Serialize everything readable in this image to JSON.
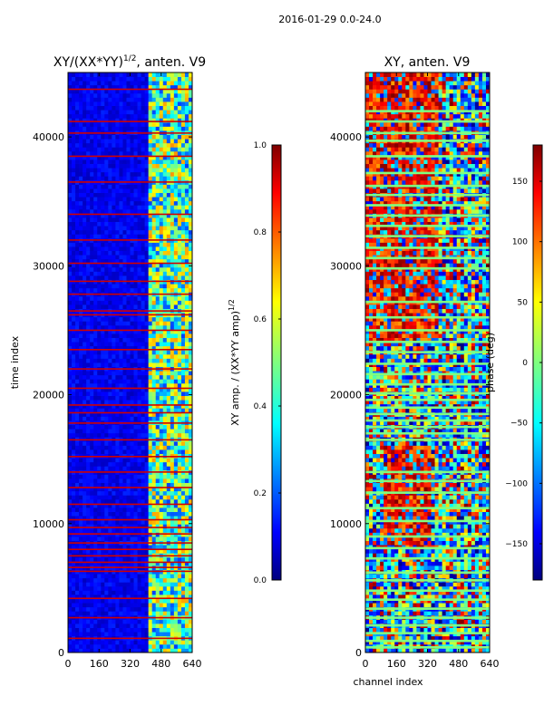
{
  "suptitle": "2016-01-29 0.0-24.0",
  "chart_data": [
    {
      "type": "heatmap",
      "title_main": "XY/(XX*YY)",
      "title_exp": "1/2",
      "title_suffix": ", anten. V9",
      "xlabel": "",
      "ylabel": "time index",
      "xlim": [
        0,
        640
      ],
      "ylim": [
        0,
        45000
      ],
      "xticks": [
        0,
        160,
        320,
        480,
        640
      ],
      "yticks": [
        0,
        10000,
        20000,
        30000,
        40000
      ],
      "colorbar": {
        "label_main": "XY amp. / (XX*YY amp)",
        "label_exp": "1/2",
        "range": [
          0.0,
          1.0
        ],
        "ticks": [
          "0.0",
          "0.2",
          "0.4",
          "0.6",
          "0.8",
          "1.0"
        ],
        "colormap": "jet"
      },
      "features": {
        "bright_channel_range": [
          410,
          640
        ],
        "flagged_rows_high_amplitude": [
          1100,
          2700,
          4200,
          6300,
          6600,
          7000,
          7500,
          8000,
          8500,
          9200,
          9700,
          10300,
          11500,
          12800,
          14000,
          15200,
          16500,
          17800,
          18600,
          19200,
          20500,
          22000,
          23500,
          25000,
          26200,
          26500,
          27800,
          28800,
          30200,
          32000,
          34000,
          36500,
          38500,
          40300,
          41200,
          43700
        ]
      }
    },
    {
      "type": "heatmap",
      "title": "XY, anten. V9",
      "xlabel": "channel index",
      "ylabel": "",
      "xlim": [
        0,
        640
      ],
      "ylim": [
        0,
        45000
      ],
      "xticks": [
        0,
        160,
        320,
        480,
        640
      ],
      "yticks": [
        0,
        10000,
        20000,
        30000,
        40000
      ],
      "colorbar": {
        "label": "phase (deg)",
        "range": [
          -180,
          180
        ],
        "ticks": [
          "-150",
          "-100",
          "-50",
          "0",
          "50",
          "100",
          "150"
        ],
        "colormap": "jet"
      },
      "features": {
        "flagged_rows_zero_phase": [
          400,
          900,
          1500,
          2100,
          2700,
          3400,
          4100,
          4800,
          5600,
          6200,
          7300,
          8100,
          9000,
          10200,
          11200,
          12400,
          13300,
          14000,
          16500,
          17000,
          17500,
          18000,
          18500,
          19000,
          19600,
          20100,
          20800,
          21600,
          22400,
          23300,
          24100,
          25000,
          26000,
          27200,
          29800,
          30600,
          31400,
          32300,
          33100,
          33900,
          34700,
          35500,
          36200,
          37200,
          38500,
          39700,
          40300,
          41200,
          42000
        ]
      }
    }
  ]
}
